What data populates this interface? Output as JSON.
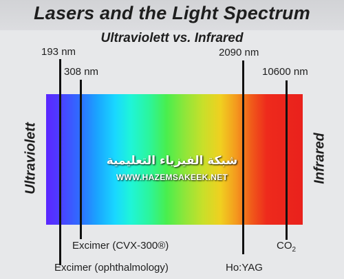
{
  "title": "Lasers and the Light Spectrum",
  "subtitle": "Ultraviolett vs. Infrared",
  "side_labels": {
    "left": "Ultraviolett",
    "right": "Infrared"
  },
  "wavelength_labels": {
    "uv_193": "193 nm",
    "uv_308": "308 nm",
    "ir_2090": "2090 nm",
    "ir_10600": "10600 nm"
  },
  "laser_labels": {
    "excimer_cvx": "Excimer (CVX-300®)",
    "excimer_ophth": "Excimer (ophthalmology)",
    "hoyag": "Ho:YAG",
    "co2_base": "CO",
    "co2_sub": "2"
  },
  "watermark": {
    "arabic": "شبكة الفيزياء التعليمية",
    "url": "WWW.HAZEMSAKEEK.NET"
  },
  "colors": {
    "ultraviolet": "#5a26ff",
    "infrared": "#e9211c",
    "line": "#101010"
  }
}
